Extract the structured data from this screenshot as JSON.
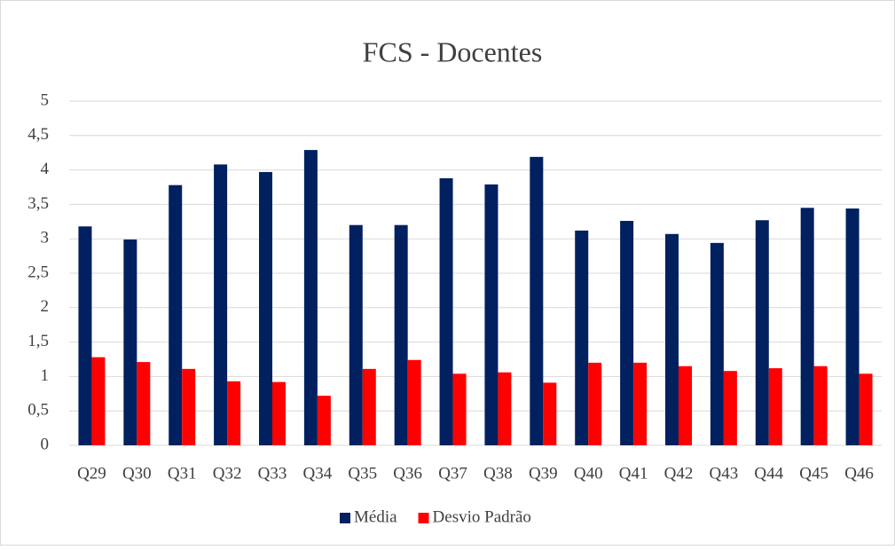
{
  "chart_data": {
    "type": "bar",
    "title": "FCS - Docentes",
    "categories": [
      "Q29",
      "Q30",
      "Q31",
      "Q32",
      "Q33",
      "Q34",
      "Q35",
      "Q36",
      "Q37",
      "Q38",
      "Q39",
      "Q40",
      "Q41",
      "Q42",
      "Q43",
      "Q44",
      "Q45",
      "Q46"
    ],
    "series": [
      {
        "name": "Média",
        "color": "#002060",
        "values": [
          3.18,
          2.99,
          3.78,
          4.08,
          3.97,
          4.29,
          3.2,
          3.2,
          3.88,
          3.79,
          4.19,
          3.12,
          3.26,
          3.07,
          2.94,
          3.27,
          3.45,
          3.44
        ]
      },
      {
        "name": "Desvio Padrão",
        "color": "#ff0000",
        "values": [
          1.28,
          1.21,
          1.11,
          0.93,
          0.92,
          0.72,
          1.11,
          1.24,
          1.04,
          1.06,
          0.91,
          1.2,
          1.2,
          1.15,
          1.08,
          1.12,
          1.15,
          1.04
        ]
      }
    ],
    "ylim": [
      0,
      5
    ],
    "yticks": [
      0,
      {
        "value": 0.5,
        "label": "0,5"
      },
      1,
      {
        "value": 1.5,
        "label": "1,5"
      },
      2,
      {
        "value": 2.5,
        "label": "2,5"
      },
      3,
      {
        "value": 3.5,
        "label": "3,5"
      },
      4,
      {
        "value": 4.5,
        "label": "4,5"
      },
      5
    ],
    "grid": true,
    "legend": "bottom"
  }
}
